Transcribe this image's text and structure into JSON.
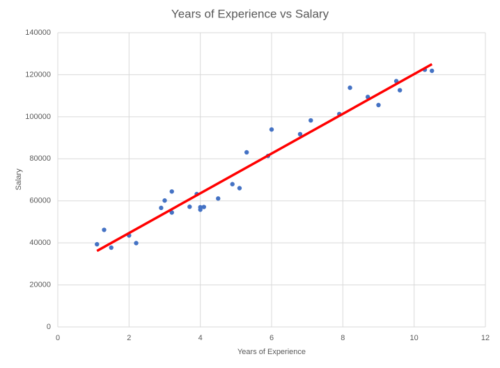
{
  "chart_data": {
    "type": "scatter",
    "title": "Years of Experience vs Salary",
    "x_label": "Years of Experience",
    "y_label": "Salary",
    "x": [
      1.1,
      1.3,
      1.5,
      2.0,
      2.2,
      2.9,
      3.0,
      3.2,
      3.2,
      3.7,
      3.9,
      4.0,
      4.0,
      4.1,
      4.5,
      4.9,
      5.1,
      5.3,
      5.9,
      6.0,
      6.8,
      7.1,
      7.9,
      8.2,
      8.7,
      9.0,
      9.5,
      9.6,
      10.3,
      10.5
    ],
    "values": [
      39343,
      46205,
      37731,
      43525,
      39891,
      56642,
      60150,
      54445,
      64445,
      57189,
      63218,
      55794,
      56957,
      57081,
      61111,
      67938,
      66029,
      83088,
      81363,
      93940,
      91738,
      98273,
      101302,
      113812,
      109431,
      105582,
      116969,
      112635,
      122391,
      121872
    ],
    "color": "#4472c4",
    "trendline": {
      "x": [
        1.1,
        10.5
      ],
      "values": [
        36187,
        125017
      ],
      "color": "#ff0000"
    },
    "xlim": [
      0,
      12
    ],
    "xticks": [
      0,
      2,
      4,
      6,
      8,
      10,
      12
    ],
    "ylim": [
      0,
      140000
    ],
    "yticks": [
      0,
      20000,
      40000,
      60000,
      80000,
      100000,
      120000,
      140000
    ],
    "grid": true
  }
}
